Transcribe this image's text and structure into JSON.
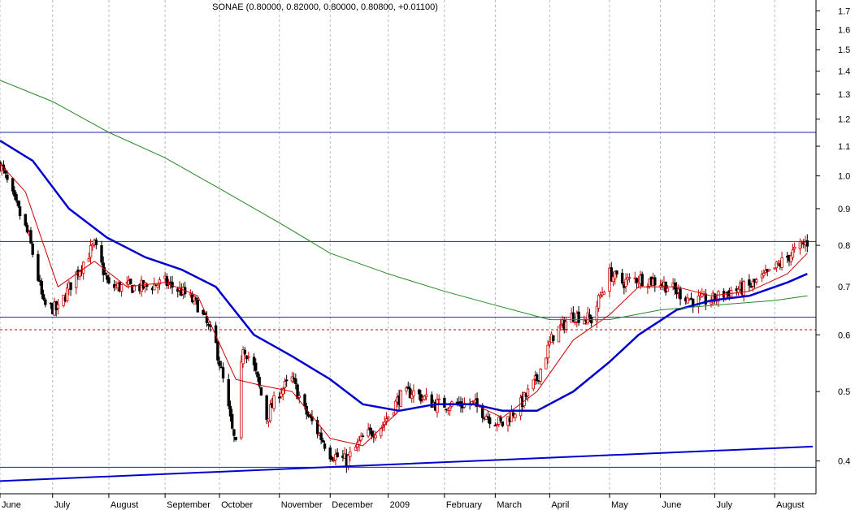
{
  "chart_data": {
    "type": "candlestick",
    "title": "SONAE (0.80000, 0.82000, 0.80000, 0.80800, +0.01100)",
    "ohlc_summary": {
      "symbol": "SONAE",
      "open": 0.8,
      "high": 0.82,
      "low": 0.8,
      "close": 0.808,
      "change": 0.011
    },
    "y_scale": "log",
    "ylim": [
      0.36,
      1.76
    ],
    "y_ticks": [
      0.4,
      0.5,
      0.6,
      0.7,
      0.8,
      0.9,
      1.0,
      1.1,
      1.2,
      1.3,
      1.4,
      1.5,
      1.6,
      1.7
    ],
    "y_tick_labels": [
      "0.4",
      "0.5",
      "0.6",
      "0.7",
      "0.8",
      "0.9",
      "1.0",
      "1.1",
      "1.2",
      "1.3",
      "1.4",
      "1.5",
      "1.6",
      "1.7"
    ],
    "x_range": [
      "2008-06-02",
      "2009-08-24"
    ],
    "x_ticks": [
      {
        "date": "2008-06-02",
        "label": "June"
      },
      {
        "date": "2008-07-01",
        "label": "July"
      },
      {
        "date": "2008-08-01",
        "label": "August"
      },
      {
        "date": "2008-09-01",
        "label": "September"
      },
      {
        "date": "2008-10-01",
        "label": "October"
      },
      {
        "date": "2008-11-03",
        "label": "November"
      },
      {
        "date": "2008-12-01",
        "label": "December"
      },
      {
        "date": "2009-01-02",
        "label": "2009"
      },
      {
        "date": "2009-02-02",
        "label": "February"
      },
      {
        "date": "2009-03-02",
        "label": "March"
      },
      {
        "date": "2009-04-01",
        "label": "April"
      },
      {
        "date": "2009-05-04",
        "label": "May"
      },
      {
        "date": "2009-06-01",
        "label": "June"
      },
      {
        "date": "2009-07-01",
        "label": "July"
      },
      {
        "date": "2009-08-03",
        "label": "August"
      }
    ],
    "horizontal_lines": [
      {
        "value": 1.15,
        "color": "#2222aa",
        "style": "solid"
      },
      {
        "value": 0.81,
        "color": "#2222aa",
        "style": "solid"
      },
      {
        "value": 0.635,
        "color": "#2222aa",
        "style": "solid"
      },
      {
        "value": 0.61,
        "color": "#cc0000",
        "style": "dashed"
      },
      {
        "value": 0.392,
        "color": "#2222aa",
        "style": "solid"
      }
    ],
    "trendlines": [
      {
        "from": {
          "date": "2008-06-02",
          "value": 0.375
        },
        "to": {
          "date": "2009-08-24",
          "value": 0.419
        },
        "color": "#0000cc"
      }
    ],
    "grid": {
      "vertical": true,
      "style": "dashed"
    },
    "price_path": [
      [
        "2008-06-02",
        1.04
      ],
      [
        "2008-06-10",
        0.92
      ],
      [
        "2008-06-18",
        0.82
      ],
      [
        "2008-06-26",
        0.66
      ],
      [
        "2008-07-04",
        0.65
      ],
      [
        "2008-07-14",
        0.73
      ],
      [
        "2008-07-24",
        0.8
      ],
      [
        "2008-08-01",
        0.7
      ],
      [
        "2008-08-11",
        0.7
      ],
      [
        "2008-08-21",
        0.7
      ],
      [
        "2008-09-01",
        0.71
      ],
      [
        "2008-09-10",
        0.69
      ],
      [
        "2008-09-19",
        0.66
      ],
      [
        "2008-09-29",
        0.58
      ],
      [
        "2008-10-08",
        0.44
      ],
      [
        "2008-10-10",
        0.42
      ],
      [
        "2008-10-14",
        0.58
      ],
      [
        "2008-10-20",
        0.54
      ],
      [
        "2008-10-27",
        0.46
      ],
      [
        "2008-11-03",
        0.5
      ],
      [
        "2008-11-10",
        0.52
      ],
      [
        "2008-11-17",
        0.47
      ],
      [
        "2008-11-24",
        0.44
      ],
      [
        "2008-12-01",
        0.41
      ],
      [
        "2008-12-10",
        0.4
      ],
      [
        "2008-12-19",
        0.43
      ],
      [
        "2008-12-30",
        0.45
      ],
      [
        "2009-01-08",
        0.49
      ],
      [
        "2009-01-15",
        0.5
      ],
      [
        "2009-01-28",
        0.48
      ],
      [
        "2009-02-09",
        0.48
      ],
      [
        "2009-02-18",
        0.48
      ],
      [
        "2009-02-27",
        0.46
      ],
      [
        "2009-03-06",
        0.45
      ],
      [
        "2009-03-16",
        0.48
      ],
      [
        "2009-03-25",
        0.52
      ],
      [
        "2009-04-03",
        0.6
      ],
      [
        "2009-04-14",
        0.64
      ],
      [
        "2009-04-24",
        0.63
      ],
      [
        "2009-05-04",
        0.73
      ],
      [
        "2009-05-11",
        0.71
      ],
      [
        "2009-05-20",
        0.72
      ],
      [
        "2009-06-01",
        0.71
      ],
      [
        "2009-06-10",
        0.69
      ],
      [
        "2009-06-19",
        0.67
      ],
      [
        "2009-06-29",
        0.67
      ],
      [
        "2009-07-09",
        0.69
      ],
      [
        "2009-07-20",
        0.7
      ],
      [
        "2009-07-31",
        0.73
      ],
      [
        "2009-08-10",
        0.77
      ],
      [
        "2009-08-18",
        0.8
      ],
      [
        "2009-08-21",
        0.808
      ]
    ],
    "series": [
      {
        "name": "",
        "color": "#cc0000",
        "points": [
          [
            "2008-06-02",
            1.04
          ],
          [
            "2008-06-16",
            0.95
          ],
          [
            "2008-07-04",
            0.7
          ],
          [
            "2008-07-24",
            0.76
          ],
          [
            "2008-08-11",
            0.7
          ],
          [
            "2008-09-01",
            0.71
          ],
          [
            "2008-09-19",
            0.68
          ],
          [
            "2008-10-10",
            0.52
          ],
          [
            "2008-10-24",
            0.51
          ],
          [
            "2008-11-10",
            0.5
          ],
          [
            "2008-12-01",
            0.43
          ],
          [
            "2008-12-19",
            0.42
          ],
          [
            "2009-01-08",
            0.47
          ],
          [
            "2009-01-28",
            0.48
          ],
          [
            "2009-02-18",
            0.48
          ],
          [
            "2009-03-06",
            0.46
          ],
          [
            "2009-03-25",
            0.5
          ],
          [
            "2009-04-14",
            0.59
          ],
          [
            "2009-05-04",
            0.64
          ],
          [
            "2009-05-20",
            0.7
          ],
          [
            "2009-06-10",
            0.7
          ],
          [
            "2009-06-29",
            0.68
          ],
          [
            "2009-07-20",
            0.69
          ],
          [
            "2009-08-10",
            0.73
          ],
          [
            "2009-08-21",
            0.78
          ]
        ]
      },
      {
        "name": "",
        "color": "#0000cc",
        "points": [
          [
            "2008-06-02",
            1.12
          ],
          [
            "2008-06-20",
            1.05
          ],
          [
            "2008-07-10",
            0.9
          ],
          [
            "2008-07-31",
            0.82
          ],
          [
            "2008-08-21",
            0.77
          ],
          [
            "2008-09-10",
            0.74
          ],
          [
            "2008-09-29",
            0.7
          ],
          [
            "2008-10-20",
            0.6
          ],
          [
            "2008-11-10",
            0.56
          ],
          [
            "2008-12-01",
            0.52
          ],
          [
            "2008-12-19",
            0.48
          ],
          [
            "2009-01-08",
            0.47
          ],
          [
            "2009-01-28",
            0.48
          ],
          [
            "2009-02-18",
            0.48
          ],
          [
            "2009-03-06",
            0.47
          ],
          [
            "2009-03-25",
            0.47
          ],
          [
            "2009-04-14",
            0.5
          ],
          [
            "2009-05-04",
            0.55
          ],
          [
            "2009-05-20",
            0.6
          ],
          [
            "2009-06-10",
            0.65
          ],
          [
            "2009-06-29",
            0.67
          ],
          [
            "2009-07-20",
            0.68
          ],
          [
            "2009-08-10",
            0.71
          ],
          [
            "2009-08-21",
            0.73
          ]
        ]
      },
      {
        "name": "",
        "color": "#228822",
        "points": [
          [
            "2008-06-02",
            1.36
          ],
          [
            "2008-07-01",
            1.27
          ],
          [
            "2008-08-01",
            1.15
          ],
          [
            "2008-09-01",
            1.06
          ],
          [
            "2008-10-01",
            0.96
          ],
          [
            "2008-11-03",
            0.86
          ],
          [
            "2008-12-01",
            0.78
          ],
          [
            "2009-01-02",
            0.73
          ],
          [
            "2009-02-02",
            0.69
          ],
          [
            "2009-03-02",
            0.66
          ],
          [
            "2009-04-01",
            0.63
          ],
          [
            "2009-05-04",
            0.63
          ],
          [
            "2009-06-01",
            0.65
          ],
          [
            "2009-07-01",
            0.66
          ],
          [
            "2009-08-03",
            0.67
          ],
          [
            "2009-08-21",
            0.68
          ]
        ]
      }
    ]
  }
}
